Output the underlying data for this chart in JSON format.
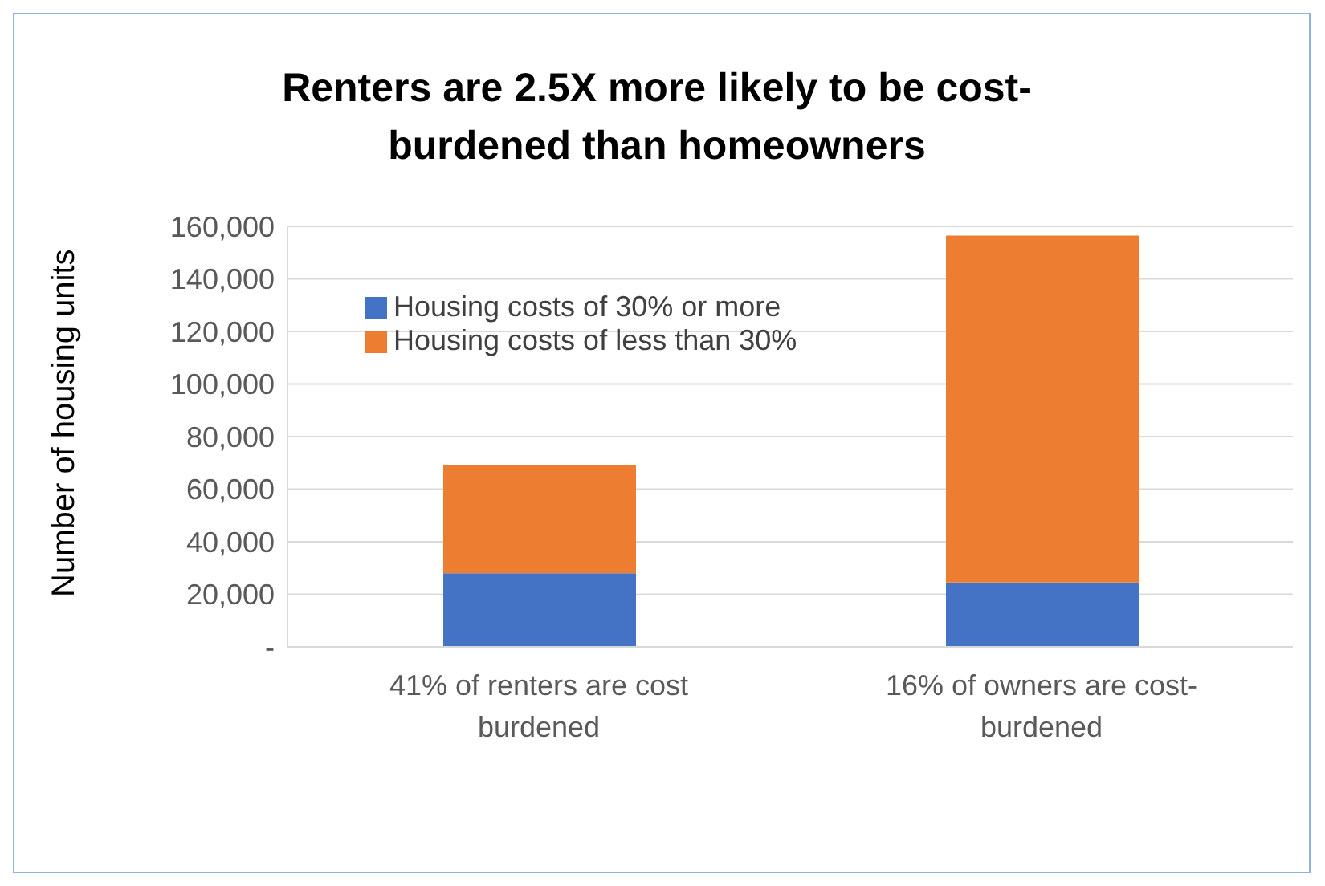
{
  "chart_data": {
    "type": "bar",
    "title": "Renters are 2.5X more likely to be cost-burdened than homeowners",
    "ylabel": "Number of housing units",
    "categories": [
      "41% of renters are cost burdened",
      "16% of owners are cost-burdened"
    ],
    "stacked": true,
    "series": [
      {
        "name": "Housing costs of 30% or more",
        "color": "#4472c4",
        "values": [
          28000,
          24500
        ]
      },
      {
        "name": "Housing costs of less than 30%",
        "color": "#ed7d31",
        "values": [
          41000,
          132000
        ]
      }
    ],
    "ylim": [
      0,
      160000
    ],
    "yticks": [
      {
        "value": 0,
        "label": "-"
      },
      {
        "value": 20000,
        "label": "20,000"
      },
      {
        "value": 40000,
        "label": "40,000"
      },
      {
        "value": 60000,
        "label": "60,000"
      },
      {
        "value": 80000,
        "label": "80,000"
      },
      {
        "value": 100000,
        "label": "100,000"
      },
      {
        "value": 120000,
        "label": "120,000"
      },
      {
        "value": 140000,
        "label": "140,000"
      },
      {
        "value": 160000,
        "label": "160,000"
      }
    ],
    "grid": "y",
    "legend": "top left"
  }
}
